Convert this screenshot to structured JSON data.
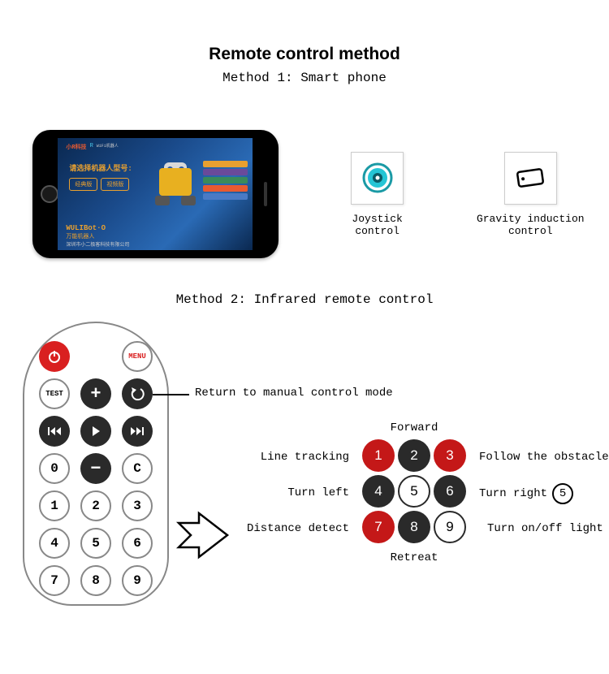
{
  "title": "Remote control method",
  "method1": {
    "heading": "Method 1: Smart phone",
    "phone_screen": {
      "chinese_prompt": "请选择机器人型号:",
      "btn1": "经典版",
      "btn2": "视频版",
      "brand_line1": "WULIBot·O",
      "brand_line2": "万能机器人",
      "sub": "深圳市小二极客科技有限公司",
      "block_colors": [
        "#e8a030",
        "#6a4a9a",
        "#3a8a5a",
        "#e85a30",
        "#4a7ac5"
      ]
    },
    "joystick_label": "Joystick control",
    "gravity_label": "Gravity induction control",
    "joystick_colors": {
      "outer": "#1a9aa5",
      "mid": "#25c5d5",
      "inner": "#0a5a65"
    },
    "gravity_color": "#000000"
  },
  "method2": {
    "heading": "Method 2: Infrared remote control",
    "callout": "Return to manual control mode",
    "remote_buttons": {
      "menu": "MENU",
      "test": "TEST",
      "zero": "0",
      "clear": "C"
    },
    "keypad": {
      "labels": {
        "top": "Forward",
        "left1": "Line tracking",
        "right1": "Follow the obstacle",
        "left2": "Turn left",
        "right2": "Turn right",
        "left3": "Distance detect",
        "right3": "Turn on/off light",
        "bottom": "Retreat"
      },
      "extra_badge": "5",
      "cells": [
        {
          "n": "1",
          "style": "red"
        },
        {
          "n": "2",
          "style": "dark"
        },
        {
          "n": "3",
          "style": "red"
        },
        {
          "n": "4",
          "style": "dark"
        },
        {
          "n": "5",
          "style": "white"
        },
        {
          "n": "6",
          "style": "dark"
        },
        {
          "n": "7",
          "style": "red"
        },
        {
          "n": "8",
          "style": "dark"
        },
        {
          "n": "9",
          "style": "white"
        }
      ]
    },
    "colors": {
      "red": "#c41818",
      "dark": "#2a2a2a",
      "remote_red": "#d92020"
    }
  }
}
